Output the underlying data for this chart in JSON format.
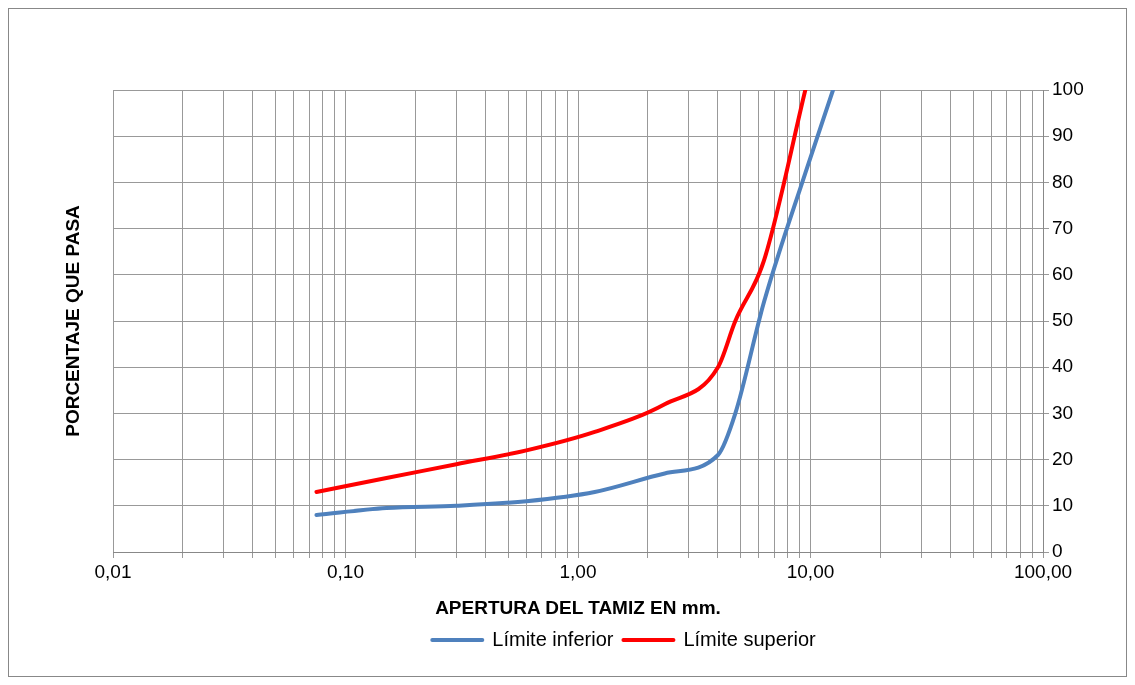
{
  "chart_data": {
    "type": "line",
    "xlabel": "APERTURA DEL TAMIZ EN mm.",
    "ylabel": "PORCENTAJE QUE PASA",
    "log": "x",
    "grid": true,
    "legend": "bottom",
    "marker": "none",
    "line_style": "solid",
    "xlim": [
      0.01,
      100
    ],
    "ylim": [
      0,
      100
    ],
    "xticks": [
      {
        "value": 0.01,
        "label": "0,01"
      },
      {
        "value": 0.02,
        "label": null
      },
      {
        "value": 0.03,
        "label": null
      },
      {
        "value": 0.04,
        "label": null
      },
      {
        "value": 0.05,
        "label": null
      },
      {
        "value": 0.06,
        "label": null
      },
      {
        "value": 0.07,
        "label": null
      },
      {
        "value": 0.08,
        "label": null
      },
      {
        "value": 0.09,
        "label": null
      },
      {
        "value": 0.1,
        "label": "0,10"
      },
      {
        "value": 0.2,
        "label": null
      },
      {
        "value": 0.3,
        "label": null
      },
      {
        "value": 0.4,
        "label": null
      },
      {
        "value": 0.5,
        "label": null
      },
      {
        "value": 0.6,
        "label": null
      },
      {
        "value": 0.7,
        "label": null
      },
      {
        "value": 0.8,
        "label": null
      },
      {
        "value": 0.9,
        "label": null
      },
      {
        "value": 1,
        "label": "1,00"
      },
      {
        "value": 2,
        "label": null
      },
      {
        "value": 3,
        "label": null
      },
      {
        "value": 4,
        "label": null
      },
      {
        "value": 5,
        "label": null
      },
      {
        "value": 6,
        "label": null
      },
      {
        "value": 7,
        "label": null
      },
      {
        "value": 8,
        "label": null
      },
      {
        "value": 9,
        "label": null
      },
      {
        "value": 10,
        "label": "10,00"
      },
      {
        "value": 20,
        "label": null
      },
      {
        "value": 30,
        "label": null
      },
      {
        "value": 40,
        "label": null
      },
      {
        "value": 50,
        "label": null
      },
      {
        "value": 60,
        "label": null
      },
      {
        "value": 70,
        "label": null
      },
      {
        "value": 80,
        "label": null
      },
      {
        "value": 90,
        "label": null
      },
      {
        "value": 100,
        "label": "100,00"
      }
    ],
    "yticks": [
      0,
      10,
      20,
      30,
      40,
      50,
      60,
      70,
      80,
      90,
      100
    ],
    "series": [
      {
        "name": "Límite inferior",
        "color": "#4f81bd",
        "x": [
          0.075,
          0.15,
          0.3,
          0.6,
          1.18,
          2.36,
          4,
          4.75,
          6.3,
          9.5,
          12.5
        ],
        "values": [
          8,
          9.5,
          10,
          11,
          13,
          17,
          21,
          30,
          54,
          82,
          100
        ]
      },
      {
        "name": "Límite superior",
        "color": "#ff0000",
        "x": [
          0.075,
          0.15,
          0.3,
          0.6,
          1.18,
          2.36,
          4,
          4.75,
          6.3,
          9.5
        ],
        "values": [
          13,
          16,
          19,
          22,
          26,
          32,
          40,
          50,
          63,
          100
        ]
      }
    ]
  }
}
